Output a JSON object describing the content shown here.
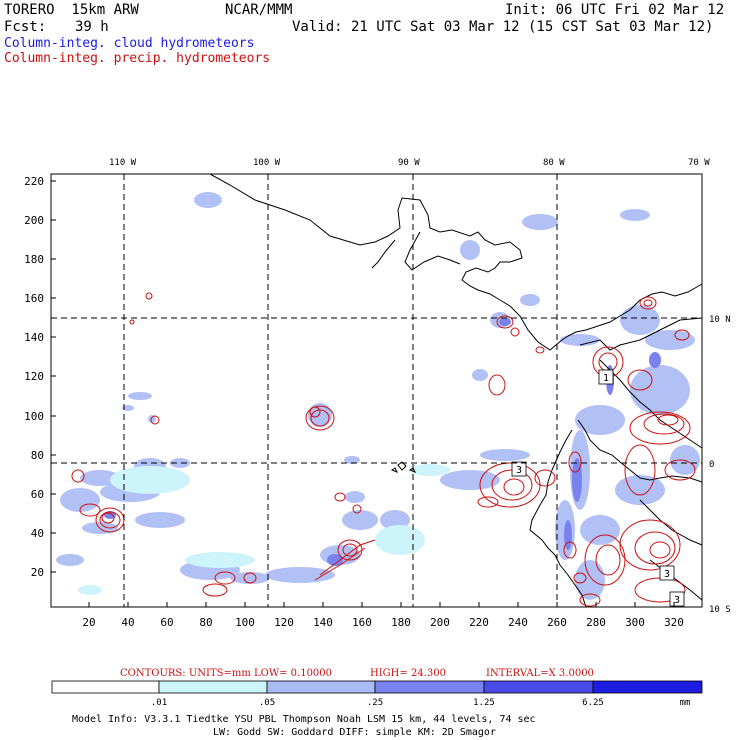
{
  "header": {
    "model": "TORERO  15km ARW",
    "org": "NCAR/MMM",
    "init": "Init: 06 UTC Fri 02 Mar 12",
    "fcst_label": "Fcst:",
    "fcst_value": "39 h",
    "valid": "Valid: 21 UTC Sat 03 Mar 12 (15 CST Sat 03 Mar 12)",
    "field_cloud": "Column-integ. cloud hydrometeors",
    "field_precip": "Column-integ. precip. hydrometeors"
  },
  "colors": {
    "cloud_text": "#1a1ae6",
    "precip_text": "#cc1010",
    "contour": "#cc1010"
  },
  "map": {
    "top_lon_labels": [
      "110 W",
      "100 W",
      "90 W",
      "80 W",
      "70 W"
    ],
    "right_lat_labels": [
      "10 N",
      "0",
      "10 S"
    ],
    "y_ticks": [
      "220",
      "200",
      "180",
      "160",
      "140",
      "120",
      "100",
      "80",
      "60",
      "40",
      "20"
    ],
    "x_ticks": [
      "20",
      "40",
      "60",
      "80",
      "100",
      "120",
      "140",
      "160",
      "180",
      "200",
      "220",
      "240",
      "260",
      "280",
      "300",
      "320"
    ],
    "cell_labels": [
      "1",
      "3",
      "3",
      "3"
    ]
  },
  "contours_info": {
    "units": "CONTOURS:  UNITS=mm  LOW= 0.10000",
    "high": "HIGH=  24.300",
    "interval": "INTERVAL=X  3.0000"
  },
  "colorbar": {
    "labels": [
      ".01",
      ".05",
      ".25",
      "1.25",
      "6.25"
    ],
    "unit": "mm",
    "colors": [
      "#ffffff",
      "#ccf4fa",
      "#a9baf5",
      "#7a82f0",
      "#4a4ae8",
      "#1c1ce3"
    ]
  },
  "footer": {
    "line1": "Model Info: V3.3.1   Tiedtke YSU PBL  Thompson     Noah LSM  15 km,   44 levels,   74 sec",
    "line2": "LW: Godd SW: Goddard DIFF: simple KM: 2D Smagor"
  }
}
